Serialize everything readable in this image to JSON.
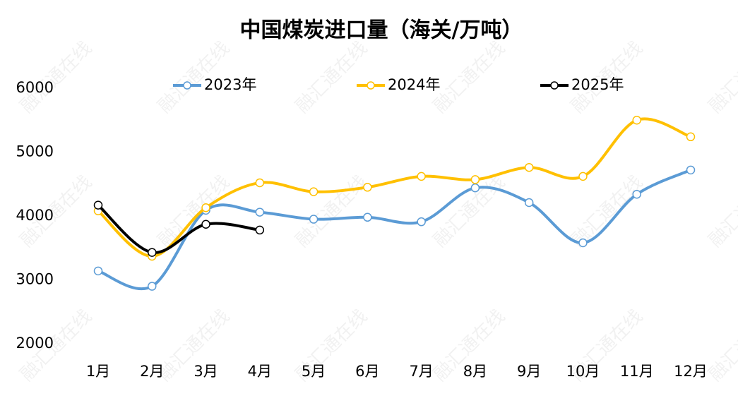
{
  "chart_data": {
    "type": "line",
    "title": "中国煤炭进口量（海关/万吨）",
    "watermark": "融汇通在线",
    "categories": [
      "1月",
      "2月",
      "3月",
      "4月",
      "5月",
      "6月",
      "7月",
      "8月",
      "9月",
      "10月",
      "11月",
      "12月"
    ],
    "series": [
      {
        "name": "2023年",
        "color": "#5b9bd5",
        "values": [
          3140,
          2900,
          4090,
          4060,
          3950,
          3980,
          3910,
          4440,
          4210,
          3580,
          4340,
          4720
        ]
      },
      {
        "name": "2024年",
        "color": "#ffc000",
        "values": [
          4080,
          3370,
          4130,
          4520,
          4380,
          4450,
          4620,
          4570,
          4760,
          4620,
          5500,
          5240
        ]
      },
      {
        "name": "2025年",
        "color": "#000000",
        "values": [
          4170,
          3430,
          3870,
          3780,
          null,
          null,
          null,
          null,
          null,
          null,
          null,
          null
        ]
      }
    ],
    "ylim": [
      2000,
      6000
    ],
    "yticks": [
      2000,
      3000,
      4000,
      5000,
      6000
    ],
    "grid": false,
    "legend": "top",
    "smooth": true
  }
}
